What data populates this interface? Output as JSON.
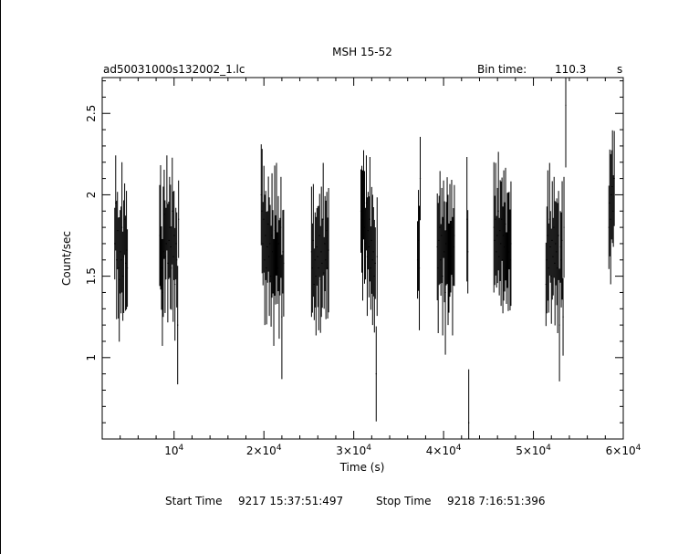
{
  "chart_data": {
    "type": "scatter",
    "title": "MSH 15-52",
    "file_label": "ad50031000s132002_1.lc",
    "bin_time_label": "Bin time:",
    "bin_time_value": "110.3",
    "bin_time_unit": "s",
    "xlabel": "Time (s)",
    "ylabel": "Count/sec",
    "xlim": [
      2000,
      60000
    ],
    "ylim": [
      0.5,
      2.72
    ],
    "x_ticks": [
      {
        "value": 10000,
        "label": "10",
        "exp": "4"
      },
      {
        "value": 20000,
        "label": "2×10",
        "exp": "4"
      },
      {
        "value": 30000,
        "label": "3×10",
        "exp": "4"
      },
      {
        "value": 40000,
        "label": "4×10",
        "exp": "4"
      },
      {
        "value": 50000,
        "label": "5×10",
        "exp": "4"
      },
      {
        "value": 60000,
        "label": "6×10",
        "exp": "4"
      }
    ],
    "y_ticks": [
      {
        "value": 1,
        "label": "1"
      },
      {
        "value": 1.5,
        "label": "1.5"
      },
      {
        "value": 2,
        "label": "2"
      },
      {
        "value": 2.5,
        "label": "2.5"
      }
    ],
    "grid": false,
    "legend": "none",
    "color": "#000000",
    "series": [
      {
        "x": [
          3400,
          3500,
          3600,
          3700,
          3800,
          3900,
          4000,
          4100,
          4200,
          4300,
          4400,
          4500,
          4600,
          4700,
          4800,
          8400,
          8500,
          8600,
          8700,
          8800,
          8900,
          9000,
          9100,
          9200,
          9300,
          9400,
          9500,
          9600,
          9700,
          9800,
          9900,
          10000,
          10100,
          10200,
          10300,
          10400,
          10500,
          19700,
          19800,
          19900,
          20000,
          20100,
          20200,
          20300,
          20400,
          20500,
          20600,
          20700,
          20800,
          20900,
          21000,
          21100,
          21200,
          21300,
          21400,
          21500,
          21600,
          21700,
          21800,
          21900,
          22000,
          22100,
          22200,
          25300,
          25400,
          25500,
          25600,
          25700,
          25800,
          25900,
          26000,
          26100,
          26200,
          26300,
          26400,
          26500,
          26600,
          26700,
          26800,
          26900,
          27000,
          27100,
          27200,
          30800,
          30900,
          31000,
          31100,
          31200,
          31300,
          31400,
          31500,
          31600,
          31700,
          31800,
          31900,
          32000,
          32100,
          32200,
          32300,
          32400,
          32500,
          32600,
          37100,
          37200,
          37300,
          37400,
          39300,
          39400,
          39500,
          39600,
          39700,
          39800,
          39900,
          40000,
          40100,
          40200,
          40300,
          40400,
          40500,
          40600,
          40700,
          40800,
          40900,
          41000,
          41100,
          41200,
          42600,
          42700,
          42800,
          45600,
          45700,
          45800,
          45900,
          46000,
          46100,
          46200,
          46300,
          46400,
          46500,
          46600,
          46700,
          46800,
          46900,
          47000,
          47100,
          47200,
          47300,
          47400,
          47500,
          51400,
          51500,
          51600,
          51700,
          51800,
          51900,
          52000,
          52100,
          52200,
          52300,
          52400,
          52500,
          52600,
          52700,
          52800,
          52900,
          53000,
          53100,
          53200,
          53300,
          53400,
          53600,
          58400,
          58500,
          58600,
          58700,
          58800,
          58900,
          59000
        ],
        "y": [
          1.7,
          1.95,
          1.6,
          1.78,
          1.55,
          1.48,
          1.65,
          1.6,
          1.8,
          1.5,
          1.62,
          1.85,
          1.58,
          1.66,
          1.55,
          1.75,
          1.8,
          1.55,
          1.4,
          1.65,
          1.88,
          1.62,
          1.7,
          1.95,
          1.58,
          1.72,
          1.8,
          1.68,
          1.55,
          1.9,
          1.62,
          1.75,
          1.45,
          1.7,
          1.6,
          1.2,
          1.85,
          2.0,
          1.9,
          1.7,
          1.85,
          1.6,
          1.75,
          1.55,
          1.68,
          1.82,
          1.62,
          1.7,
          1.5,
          1.75,
          1.65,
          1.4,
          1.78,
          1.6,
          1.85,
          1.55,
          1.7,
          1.48,
          1.62,
          1.8,
          1.25,
          1.65,
          1.58,
          1.65,
          1.55,
          1.72,
          1.45,
          1.6,
          1.5,
          1.68,
          1.62,
          1.55,
          1.75,
          1.48,
          1.65,
          1.58,
          1.85,
          1.52,
          1.7,
          1.6,
          1.78,
          1.55,
          1.66,
          1.9,
          1.85,
          1.75,
          2.0,
          1.8,
          1.7,
          1.95,
          1.62,
          1.78,
          1.68,
          1.85,
          1.55,
          1.72,
          1.6,
          1.65,
          1.5,
          1.58,
          0.9,
          1.62,
          1.6,
          1.72,
          1.55,
          2.1,
          1.68,
          1.55,
          1.72,
          1.8,
          1.6,
          1.75,
          1.5,
          1.85,
          1.65,
          1.4,
          1.7,
          1.78,
          1.6,
          1.55,
          1.72,
          1.62,
          1.8,
          1.5,
          1.68,
          1.75,
          1.85,
          1.65,
          0.6,
          1.8,
          1.72,
          1.85,
          1.65,
          1.75,
          1.9,
          1.62,
          1.78,
          1.7,
          1.85,
          1.6,
          1.75,
          1.68,
          1.82,
          1.55,
          1.72,
          1.65,
          1.78,
          1.6,
          1.7,
          1.45,
          1.6,
          1.75,
          1.55,
          1.85,
          1.68,
          1.5,
          1.72,
          1.62,
          1.8,
          1.58,
          1.7,
          1.65,
          1.55,
          1.75,
          1.2,
          1.68,
          1.6,
          1.72,
          1.25,
          1.8,
          2.55,
          1.8,
          1.95,
          1.85,
          2.0,
          2.05,
          1.9,
          2.1
        ]
      }
    ]
  },
  "footer": {
    "start_label": "Start Time",
    "start_value": "9217 15:37:51:497",
    "stop_label": "Stop Time",
    "stop_value": "9218  7:16:51:396"
  }
}
